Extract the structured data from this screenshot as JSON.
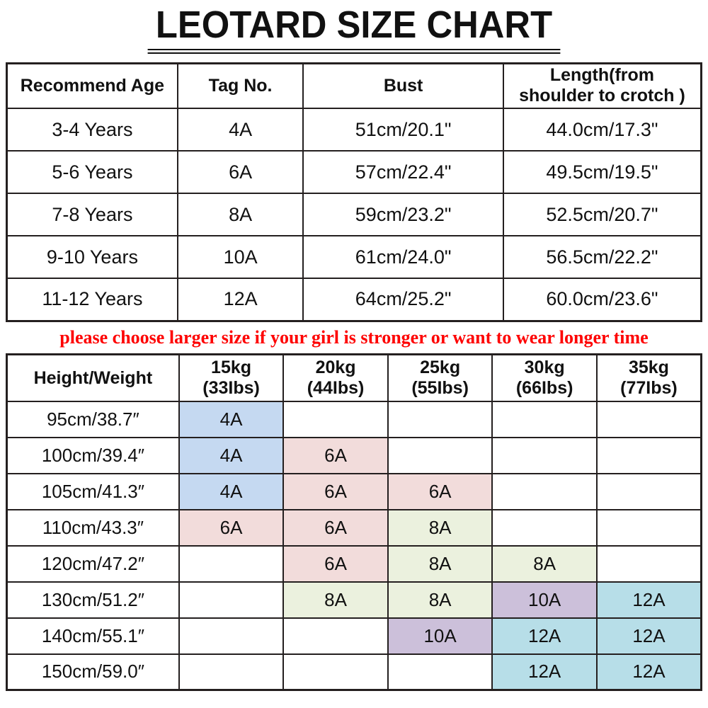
{
  "title": "LEOTARD SIZE CHART",
  "note": "please choose larger size if your girl is stronger or want to wear longer time",
  "colors": {
    "blue": "#C5D9F1",
    "pink": "#F2DCDB",
    "green": "#EBF1DE",
    "purple": "#CCC0DA",
    "cyan": "#B7DEE8",
    "note_red": "#FE0000",
    "border": "#241F1F"
  },
  "size_table": {
    "headers": [
      "Recommend Age",
      "Tag No.",
      "Bust",
      "Length(from\nshoulder to crotch )"
    ],
    "rows": [
      [
        "3-4 Years",
        "4A",
        "51cm/20.1\"",
        "44.0cm/17.3\""
      ],
      [
        "5-6 Years",
        "6A",
        "57cm/22.4\"",
        "49.5cm/19.5\""
      ],
      [
        "7-8 Years",
        "8A",
        "59cm/23.2\"",
        "52.5cm/20.7\""
      ],
      [
        "9-10 Years",
        "10A",
        "61cm/24.0\"",
        "56.5cm/22.2\""
      ],
      [
        "11-12 Years",
        "12A",
        "64cm/25.2\"",
        "60.0cm/23.6\""
      ]
    ]
  },
  "fit_table": {
    "corner": "Height/Weight",
    "weight_headers": [
      {
        "kg": "15kg",
        "lbs": "(33Ibs)"
      },
      {
        "kg": "20kg",
        "lbs": "(44Ibs)"
      },
      {
        "kg": "25kg",
        "lbs": "(55Ibs)"
      },
      {
        "kg": "30kg",
        "lbs": "(66Ibs)"
      },
      {
        "kg": "35kg",
        "lbs": "(77Ibs)"
      }
    ],
    "rows": [
      {
        "height": "95cm/38.7″",
        "cells": [
          {
            "text": "4A",
            "fill": "blue"
          },
          null,
          null,
          null,
          null
        ]
      },
      {
        "height": "100cm/39.4″",
        "cells": [
          {
            "text": "4A",
            "fill": "blue"
          },
          {
            "text": "6A",
            "fill": "pink"
          },
          null,
          null,
          null
        ]
      },
      {
        "height": "105cm/41.3″",
        "cells": [
          {
            "text": "4A",
            "fill": "blue"
          },
          {
            "text": "6A",
            "fill": "pink"
          },
          {
            "text": "6A",
            "fill": "pink"
          },
          null,
          null
        ]
      },
      {
        "height": "110cm/43.3″",
        "cells": [
          {
            "text": "6A",
            "fill": "pink"
          },
          {
            "text": "6A",
            "fill": "pink"
          },
          {
            "text": "8A",
            "fill": "green"
          },
          null,
          null
        ]
      },
      {
        "height": "120cm/47.2″",
        "cells": [
          null,
          {
            "text": "6A",
            "fill": "pink"
          },
          {
            "text": "8A",
            "fill": "green"
          },
          {
            "text": "8A",
            "fill": "green"
          },
          null
        ]
      },
      {
        "height": "130cm/51.2″",
        "cells": [
          null,
          {
            "text": "8A",
            "fill": "green"
          },
          {
            "text": "8A",
            "fill": "green"
          },
          {
            "text": "10A",
            "fill": "purple"
          },
          {
            "text": "12A",
            "fill": "cyan"
          }
        ]
      },
      {
        "height": "140cm/55.1″",
        "cells": [
          null,
          null,
          {
            "text": "10A",
            "fill": "purple"
          },
          {
            "text": "12A",
            "fill": "cyan"
          },
          {
            "text": "12A",
            "fill": "cyan"
          }
        ]
      },
      {
        "height": "150cm/59.0″",
        "cells": [
          null,
          null,
          null,
          {
            "text": "12A",
            "fill": "cyan"
          },
          {
            "text": "12A",
            "fill": "cyan"
          }
        ]
      }
    ]
  },
  "chart_data": [
    {
      "type": "table",
      "title": "LEOTARD SIZE CHART",
      "columns": [
        "Recommend Age",
        "Tag No.",
        "Bust",
        "Length(from shoulder to crotch )"
      ],
      "rows": [
        [
          "3-4 Years",
          "4A",
          "51cm/20.1\"",
          "44.0cm/17.3\""
        ],
        [
          "5-6 Years",
          "6A",
          "57cm/22.4\"",
          "49.5cm/19.5\""
        ],
        [
          "7-8 Years",
          "8A",
          "59cm/23.2\"",
          "52.5cm/20.7\""
        ],
        [
          "9-10 Years",
          "10A",
          "61cm/24.0\"",
          "56.5cm/22.2\""
        ],
        [
          "11-12 Years",
          "12A",
          "64cm/25.2\"",
          "60.0cm/23.6\""
        ]
      ]
    },
    {
      "type": "table",
      "title": "Height/Weight size grid",
      "corner": "Height/Weight",
      "columns": [
        "15kg (33Ibs)",
        "20kg (44Ibs)",
        "25kg (55Ibs)",
        "30kg (66Ibs)",
        "35kg (77Ibs)"
      ],
      "rows": [
        [
          "95cm/38.7″",
          "4A",
          "",
          "",
          "",
          ""
        ],
        [
          "100cm/39.4″",
          "4A",
          "6A",
          "",
          "",
          ""
        ],
        [
          "105cm/41.3″",
          "4A",
          "6A",
          "6A",
          "",
          ""
        ],
        [
          "110cm/43.3″",
          "6A",
          "6A",
          "8A",
          "",
          ""
        ],
        [
          "120cm/47.2″",
          "",
          "6A",
          "8A",
          "8A",
          ""
        ],
        [
          "130cm/51.2″",
          "",
          "8A",
          "8A",
          "10A",
          "12A"
        ],
        [
          "140cm/55.1″",
          "",
          "",
          "10A",
          "12A",
          "12A"
        ],
        [
          "150cm/59.0″",
          "",
          "",
          "",
          "12A",
          "12A"
        ]
      ],
      "annotation": "please choose larger size if your girl is stronger or want to wear longer time"
    }
  ]
}
